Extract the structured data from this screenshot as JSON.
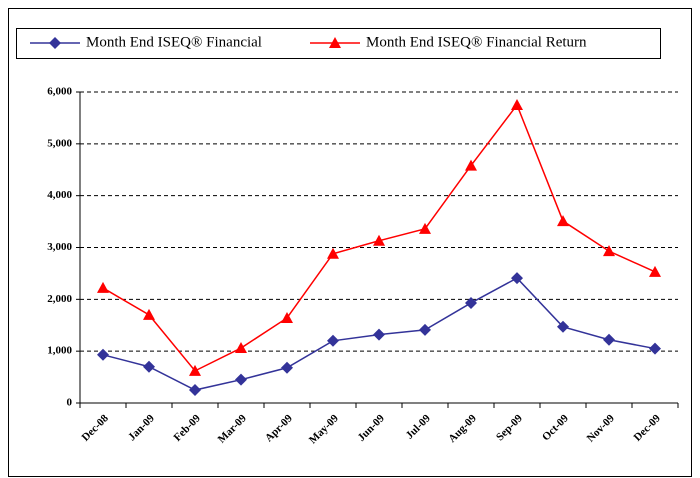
{
  "chart_data": {
    "type": "line",
    "categories": [
      "Dec-08",
      "Jan-09",
      "Feb-09",
      "Mar-09",
      "Apr-09",
      "May-09",
      "Jun-09",
      "Jul-09",
      "Aug-09",
      "Sep-09",
      "Oct-09",
      "Nov-09",
      "Dec-09"
    ],
    "series": [
      {
        "name": "Month End ISEQ® Financial",
        "color": "#333399",
        "marker": "diamond",
        "values": [
          930,
          700,
          250,
          450,
          680,
          1200,
          1320,
          1410,
          1930,
          2410,
          1470,
          1220,
          1050
        ]
      },
      {
        "name": "Month End ISEQ® Financial Return",
        "color": "#ff0000",
        "marker": "triangle",
        "values": [
          2220,
          1700,
          620,
          1060,
          1640,
          2880,
          3130,
          3360,
          4580,
          5750,
          3510,
          2930,
          2530
        ]
      }
    ],
    "ylim": [
      0,
      6000
    ],
    "yticks": [
      0,
      {
        "value": 1000,
        "label": "1,000"
      },
      {
        "value": 2000,
        "label": "2,000"
      },
      {
        "value": 3000,
        "label": "3,000"
      },
      {
        "value": 4000,
        "label": "4,000"
      },
      {
        "value": 5000,
        "label": "5,000"
      },
      {
        "value": 6000,
        "label": "6,000"
      }
    ],
    "grid": true,
    "legend": "top"
  }
}
